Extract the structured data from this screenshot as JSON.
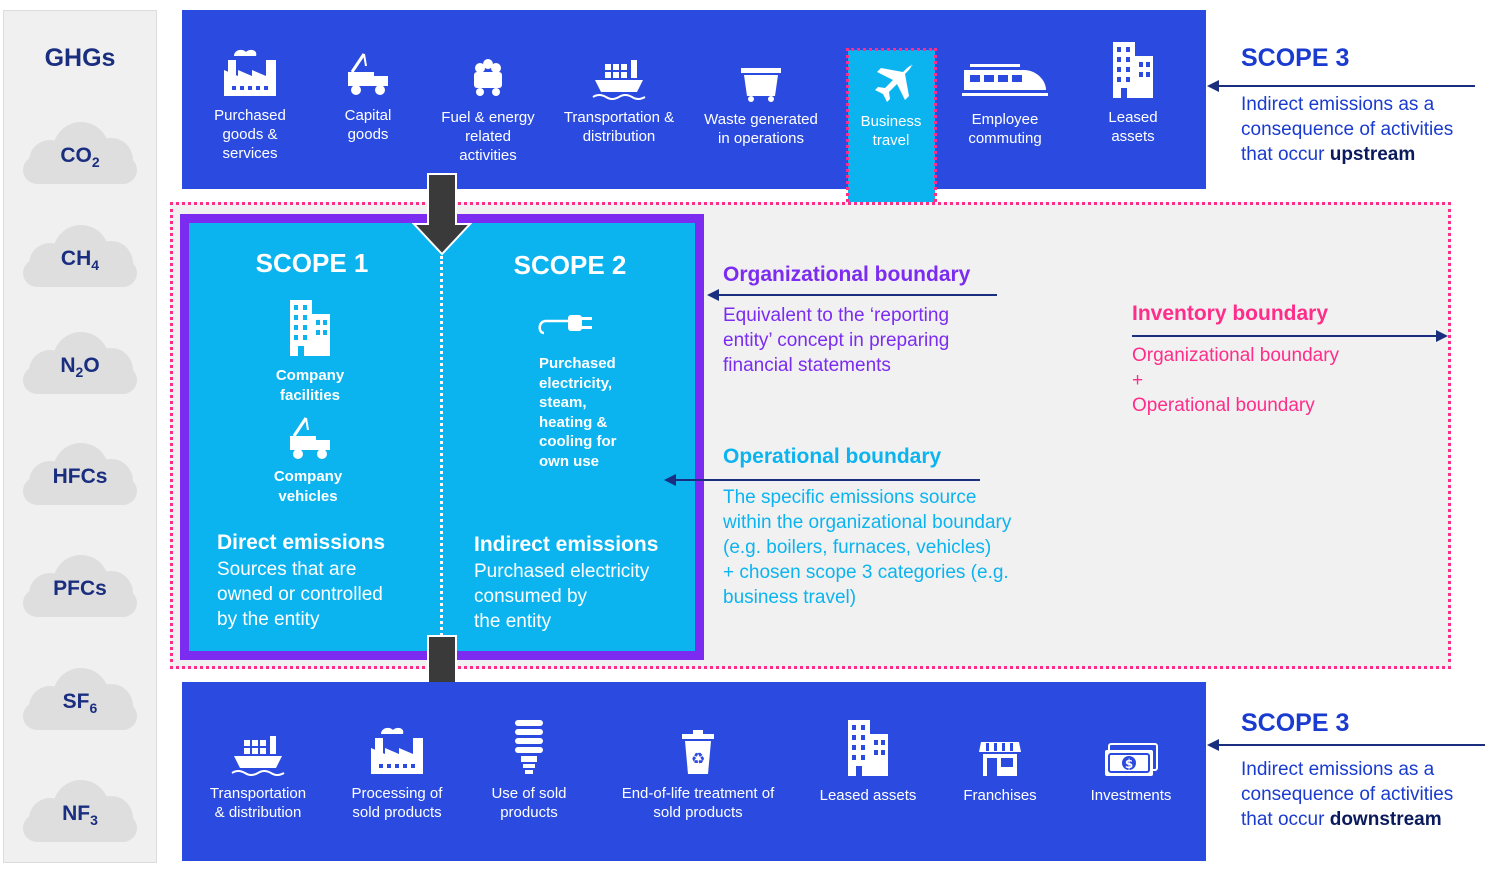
{
  "ghg": {
    "title": "GHGs",
    "gases": [
      {
        "main": "CO",
        "sub": "2"
      },
      {
        "main": "CH",
        "sub": "4"
      },
      {
        "main": "N",
        "sub": "2",
        "tail": "O"
      },
      {
        "main": "HFCs",
        "sub": ""
      },
      {
        "main": "PFCs",
        "sub": ""
      },
      {
        "main": "SF",
        "sub": "6"
      },
      {
        "main": "NF",
        "sub": "3"
      }
    ]
  },
  "upstream": {
    "items": [
      {
        "label": "Purchased\ngoods &\nservices",
        "icon": "factory-icon"
      },
      {
        "label": "Capital\ngoods",
        "icon": "truck-crane-icon"
      },
      {
        "label": "Fuel & energy\nrelated\nactivities",
        "icon": "coal-cart-icon"
      },
      {
        "label": "Transportation &\ndistribution",
        "icon": "cargo-ship-icon"
      },
      {
        "label": "Waste generated\nin operations",
        "icon": "dumpster-icon"
      },
      {
        "label": "Business\ntravel",
        "icon": "airplane-icon"
      },
      {
        "label": "Employee\ncommuting",
        "icon": "train-icon"
      },
      {
        "label": "Leased\nassets",
        "icon": "building-icon"
      }
    ],
    "scope_title": "SCOPE 3",
    "scope_text_pre": "Indirect emissions as a\nconsequence of activities\nthat occur ",
    "scope_text_bold": "upstream"
  },
  "downstream": {
    "items": [
      {
        "label": "Transportation\n& distribution",
        "icon": "cargo-ship-icon"
      },
      {
        "label": "Processing of\nsold products",
        "icon": "factory-icon"
      },
      {
        "label": "Use of sold\nproducts",
        "icon": "bulb-icon"
      },
      {
        "label": "End-of-life treatment of\nsold products",
        "icon": "recycle-bin-icon"
      },
      {
        "label": "Leased assets",
        "icon": "building-icon"
      },
      {
        "label": "Franchises",
        "icon": "storefront-icon"
      },
      {
        "label": "Investments",
        "icon": "money-icon"
      }
    ],
    "scope_title": "SCOPE 3",
    "scope_text_pre": "Indirect emissions as a\nconsequence of activities\nthat occur ",
    "scope_text_bold": "downstream"
  },
  "scope1": {
    "title": "SCOPE 1",
    "facilities": "Company\nfacilities",
    "vehicles": "Company\nvehicles",
    "heading": "Direct emissions",
    "text": "Sources that are\nowned or controlled\nby the entity"
  },
  "scope2": {
    "title": "SCOPE 2",
    "electricity": "Purchased\nelectricity,\nsteam,\nheating &\ncooling for\nown use",
    "heading": "Indirect emissions",
    "text": "Purchased electricity\nconsumed by\nthe entity"
  },
  "org_boundary": {
    "title": "Organizational boundary",
    "text": "Equivalent to the ‘reporting\nentity’ concept in preparing\nfinancial statements",
    "color": "#7b2cf0"
  },
  "op_boundary": {
    "title": "Operational boundary",
    "text": "The specific emissions source\nwithin the organizational boundary\n(e.g. boilers, furnaces, vehicles)\n+ chosen scope 3 categories (e.g.\nbusiness travel)",
    "color": "#0cb4ef"
  },
  "inv_boundary": {
    "title": "Inventory boundary",
    "text": "Organizational boundary\n+\nOperational boundary",
    "color": "#ff2d8a"
  },
  "colors": {
    "band_blue": "#2b4be0",
    "scope12_cyan": "#0cb4ef",
    "org_purple": "#7b2cf0",
    "inventory_pink": "#ff2d8a",
    "navy": "#1a2e80"
  }
}
